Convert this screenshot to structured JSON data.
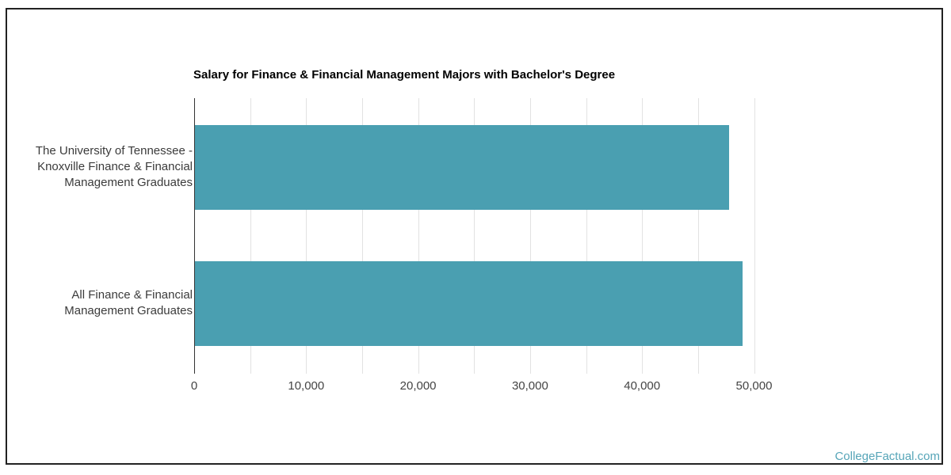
{
  "chart_data": {
    "type": "bar",
    "orientation": "horizontal",
    "title": "Salary for Finance & Financial Management Majors with Bachelor's Degree",
    "categories": [
      "The University of Tennessee - Knoxville Finance & Financial Management Graduates",
      "All Finance & Financial Management Graduates"
    ],
    "category_label_lines": [
      [
        "The University of Tennessee -",
        "Knoxville Finance & Financial",
        "Management Graduates"
      ],
      [
        "All Finance & Financial",
        "Management Graduates"
      ]
    ],
    "values": [
      47700,
      48900
    ],
    "xlabel": "",
    "ylabel": "",
    "xlim": [
      0,
      50000
    ],
    "x_ticks": [
      {
        "value": 0,
        "label": "0"
      },
      {
        "value": 10000,
        "label": "10,000"
      },
      {
        "value": 20000,
        "label": "20,000"
      },
      {
        "value": 30000,
        "label": "30,000"
      },
      {
        "value": 40000,
        "label": "40,000"
      },
      {
        "value": 50000,
        "label": "50,000"
      }
    ],
    "x_minor_grid_step": 5000,
    "grid": true,
    "legend": "none"
  },
  "page": {
    "watermark": "CollegeFactual.com"
  },
  "colors": {
    "bar": "#4a9fb1",
    "axis": "#333333",
    "gridline": "#e2e2e2",
    "tick_text": "#444444",
    "category_text": "#3b3b3b",
    "title_text": "#000000",
    "watermark_text": "#56a5b8",
    "frame_border": "#222222",
    "background": "#ffffff"
  }
}
